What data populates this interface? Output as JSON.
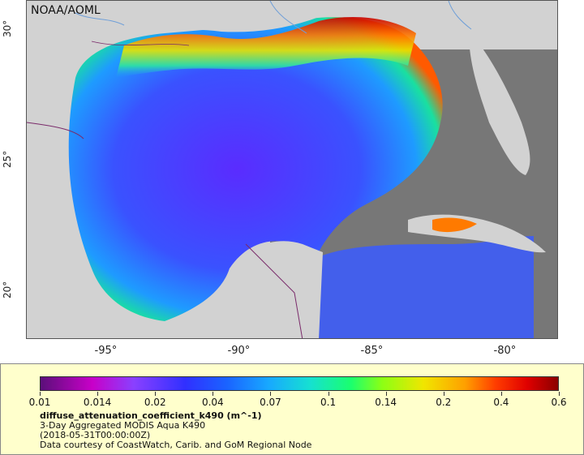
{
  "map": {
    "credit": "NOAA/AOML",
    "lat_ticks": [
      {
        "label": "30°",
        "lat": 30
      },
      {
        "label": "25°",
        "lat": 25
      },
      {
        "label": "20°",
        "lat": 20
      }
    ],
    "lon_ticks": [
      {
        "label": "-95°",
        "lon": -95
      },
      {
        "label": "-90°",
        "lon": -90
      },
      {
        "label": "-85°",
        "lon": -85
      },
      {
        "label": "-80°",
        "lon": -80
      }
    ],
    "extent": {
      "lon_min": -98,
      "lon_max": -78,
      "lat_min": 18,
      "lat_max": 31
    }
  },
  "legend": {
    "ticks": [
      "0.01",
      "0.014",
      "0.02",
      "0.04",
      "0.07",
      "0.1",
      "0.14",
      "0.2",
      "0.4",
      "0.6"
    ],
    "variable": "diffuse_attenuation_coefficient_k490 (m^-1)",
    "product": "3-Day Aggregated MODIS Aqua K490",
    "date": "(2018-05-31T00:00:00Z)",
    "courtesy": "Data courtesy of CoastWatch, Carib. and GoM Regional Node"
  },
  "colors": {
    "land": "#d2d2d2",
    "no_data": "#777777",
    "ocean_deep": "#3a52ff",
    "ocean_mid": "#2f7dff",
    "coastal_high": "#e01400",
    "panel_bg": "#ffffcc"
  }
}
